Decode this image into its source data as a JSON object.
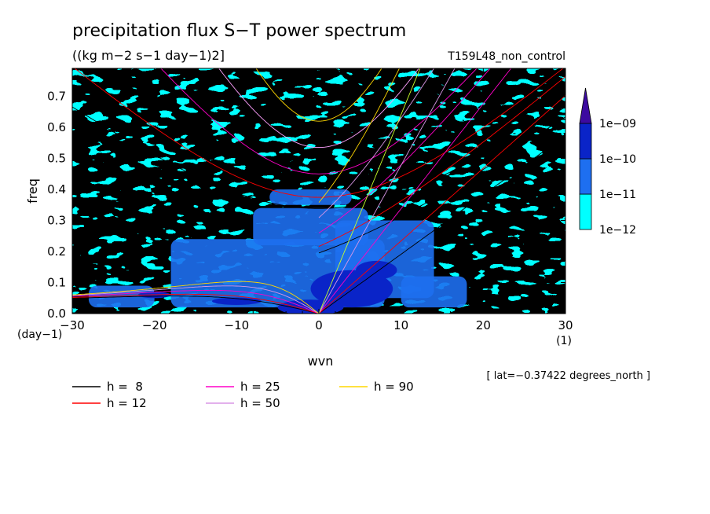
{
  "chart_data": {
    "type": "heatmap",
    "title": "precipitation flux S−T power spectrum",
    "subtitle": "((kg m−2 s−1 day−1)2]",
    "experiment": "T159L48_non_control",
    "xlabel": "wvn",
    "ylabel": "freq",
    "x_unit": "(1)",
    "y_unit": "(day−1)",
    "xlim": [
      -30,
      30
    ],
    "ylim": [
      0,
      0.79
    ],
    "x_ticks": [
      {
        "value": -30,
        "label": "−30"
      },
      {
        "value": -20,
        "label": "−20"
      },
      {
        "value": -10,
        "label": "−10"
      },
      {
        "value": 0,
        "label": "0"
      },
      {
        "value": 10,
        "label": "10"
      },
      {
        "value": 20,
        "label": "20"
      },
      {
        "value": 30,
        "label": "30"
      }
    ],
    "y_ticks": [
      {
        "value": 0,
        "label": "0.0"
      },
      {
        "value": 0.1,
        "label": "0.1"
      },
      {
        "value": 0.2,
        "label": "0.2"
      },
      {
        "value": 0.3,
        "label": "0.3"
      },
      {
        "value": 0.4,
        "label": "0.4"
      },
      {
        "value": 0.5,
        "label": "0.5"
      },
      {
        "value": 0.6,
        "label": "0.6"
      },
      {
        "value": 0.7,
        "label": "0.7"
      }
    ],
    "colorbar": {
      "levels": [
        "1e−12",
        "1e−11",
        "1e−10",
        "1e−09"
      ],
      "colors": [
        "#00ffff",
        "#1e6ff0",
        "#0a24c8",
        "#3c0aa0"
      ],
      "background": "#ffffff"
    },
    "dispersion_legend": [
      {
        "label": "h =  8",
        "h": 8,
        "color": "#000000"
      },
      {
        "label": "h = 12",
        "h": 12,
        "color": "#ff0000"
      },
      {
        "label": "h = 25",
        "h": 25,
        "color": "#ff00c8"
      },
      {
        "label": "h = 50",
        "h": 50,
        "color": "#d896e6"
      },
      {
        "label": "h = 90",
        "h": 90,
        "color": "#ffd700"
      }
    ],
    "extra_curve_colors": {
      "h90_kelvin": "#c8ff28",
      "h50_inertia": "#ffa0ff"
    },
    "latitude_note": "[ lat=−0.37422 degrees_north ]"
  }
}
